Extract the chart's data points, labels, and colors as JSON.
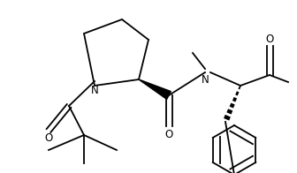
{
  "bg_color": "#ffffff",
  "line_color": "#000000",
  "lw": 1.3,
  "figsize": [
    3.36,
    1.96
  ],
  "dpi": 100,
  "xlim": [
    0,
    336
  ],
  "ylim": [
    0,
    196
  ]
}
